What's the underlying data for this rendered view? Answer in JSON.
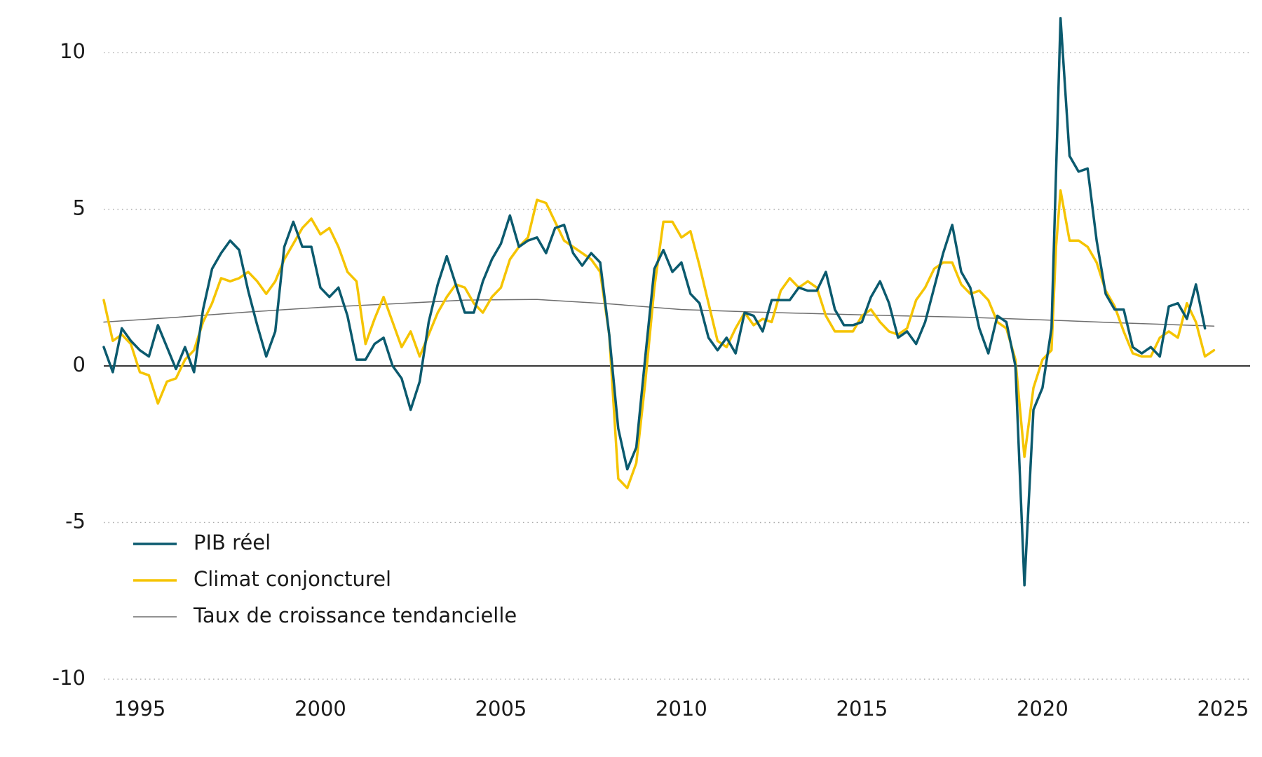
{
  "chart_data": {
    "type": "line",
    "xlim": [
      1994,
      2025.75
    ],
    "ylim": [
      -10,
      11.5
    ],
    "xticks": [
      1995,
      2000,
      2005,
      2010,
      2015,
      2020,
      2025
    ],
    "yticks": [
      -10,
      -5,
      0,
      5,
      10
    ],
    "grid": true,
    "legend": "lower left",
    "series": [
      {
        "name": "PIB réel",
        "color": "#0b5a6e",
        "width": 3.5,
        "x": [
          1994,
          1994.25,
          1994.5,
          1994.75,
          1995,
          1995.25,
          1995.5,
          1995.75,
          1996,
          1996.25,
          1996.5,
          1996.75,
          1997,
          1997.25,
          1997.5,
          1997.75,
          1998,
          1998.25,
          1998.5,
          1998.75,
          1999,
          1999.25,
          1999.5,
          1999.75,
          2000,
          2000.25,
          2000.5,
          2000.75,
          2001,
          2001.25,
          2001.5,
          2001.75,
          2002,
          2002.25,
          2002.5,
          2002.75,
          2003,
          2003.25,
          2003.5,
          2003.75,
          2004,
          2004.25,
          2004.5,
          2004.75,
          2005,
          2005.25,
          2005.5,
          2005.75,
          2006,
          2006.25,
          2006.5,
          2006.75,
          2007,
          2007.25,
          2007.5,
          2007.75,
          2008,
          2008.25,
          2008.5,
          2008.75,
          2009,
          2009.25,
          2009.5,
          2009.75,
          2010,
          2010.25,
          2010.5,
          2010.75,
          2011,
          2011.25,
          2011.5,
          2011.75,
          2012,
          2012.25,
          2012.5,
          2012.75,
          2013,
          2013.25,
          2013.5,
          2013.75,
          2014,
          2014.25,
          2014.5,
          2014.75,
          2015,
          2015.25,
          2015.5,
          2015.75,
          2016,
          2016.25,
          2016.5,
          2016.75,
          2017,
          2017.25,
          2017.5,
          2017.75,
          2018,
          2018.25,
          2018.5,
          2018.75,
          2019,
          2019.25,
          2019.5,
          2019.75,
          2020,
          2020.25,
          2020.5,
          2020.75,
          2021,
          2021.25,
          2021.5,
          2021.75,
          2022,
          2022.25,
          2022.5,
          2022.75,
          2023,
          2023.25,
          2023.5,
          2023.75,
          2024,
          2024.25,
          2024.5
        ],
        "values": [
          0.6,
          -0.2,
          1.2,
          0.8,
          0.5,
          0.3,
          1.3,
          0.6,
          -0.1,
          0.6,
          -0.2,
          1.8,
          3.1,
          3.6,
          4.0,
          3.7,
          2.4,
          1.3,
          0.3,
          1.1,
          3.8,
          4.6,
          3.8,
          3.8,
          2.5,
          2.2,
          2.5,
          1.6,
          0.2,
          0.2,
          0.7,
          0.9,
          0.0,
          -0.4,
          -1.4,
          -0.5,
          1.4,
          2.6,
          3.5,
          2.6,
          1.7,
          1.7,
          2.7,
          3.4,
          3.9,
          4.8,
          3.8,
          4.0,
          4.1,
          3.6,
          4.4,
          4.5,
          3.6,
          3.2,
          3.6,
          3.3,
          1.0,
          -2.0,
          -3.3,
          -2.6,
          0.3,
          3.1,
          3.7,
          3.0,
          3.3,
          2.3,
          2.0,
          0.9,
          0.5,
          0.9,
          0.4,
          1.7,
          1.6,
          1.1,
          2.1,
          2.1,
          2.1,
          2.5,
          2.4,
          2.4,
          3.0,
          1.8,
          1.3,
          1.3,
          1.4,
          2.2,
          2.7,
          2.0,
          0.9,
          1.1,
          0.7,
          1.4,
          2.5,
          3.6,
          4.5,
          3.0,
          2.5,
          1.2,
          0.4,
          1.6,
          1.4,
          0.0,
          -7.0,
          -1.4,
          -0.7,
          1.2,
          11.1,
          6.7,
          6.2,
          6.3,
          4.0,
          2.3,
          1.8,
          1.8,
          0.6,
          0.4,
          0.6,
          0.3,
          1.9,
          2.0,
          1.5,
          2.6,
          1.2
        ]
      },
      {
        "name": "Climat conjoncturel",
        "color": "#f5c400",
        "width": 3.5,
        "x": [
          1994,
          1994.25,
          1994.5,
          1994.75,
          1995,
          1995.25,
          1995.5,
          1995.75,
          1996,
          1996.25,
          1996.5,
          1996.75,
          1997,
          1997.25,
          1997.5,
          1997.75,
          1998,
          1998.25,
          1998.5,
          1998.75,
          1999,
          1999.25,
          1999.5,
          1999.75,
          2000,
          2000.25,
          2000.5,
          2000.75,
          2001,
          2001.25,
          2001.5,
          2001.75,
          2002,
          2002.25,
          2002.5,
          2002.75,
          2003,
          2003.25,
          2003.5,
          2003.75,
          2004,
          2004.25,
          2004.5,
          2004.75,
          2005,
          2005.25,
          2005.5,
          2005.75,
          2006,
          2006.25,
          2006.5,
          2006.75,
          2007,
          2007.25,
          2007.5,
          2007.75,
          2008,
          2008.25,
          2008.5,
          2008.75,
          2009,
          2009.25,
          2009.5,
          2009.75,
          2010,
          2010.25,
          2010.5,
          2010.75,
          2011,
          2011.25,
          2011.5,
          2011.75,
          2012,
          2012.25,
          2012.5,
          2012.75,
          2013,
          2013.25,
          2013.5,
          2013.75,
          2014,
          2014.25,
          2014.5,
          2014.75,
          2015,
          2015.25,
          2015.5,
          2015.75,
          2016,
          2016.25,
          2016.5,
          2016.75,
          2017,
          2017.25,
          2017.5,
          2017.75,
          2018,
          2018.25,
          2018.5,
          2018.75,
          2019,
          2019.25,
          2019.5,
          2019.75,
          2020,
          2020.25,
          2020.375,
          2020.5,
          2020.75,
          2021,
          2021.25,
          2021.5,
          2021.75,
          2022,
          2022.25,
          2022.5,
          2022.75,
          2023,
          2023.25,
          2023.5,
          2023.75,
          2024,
          2024.25,
          2024.5,
          2024.75
        ],
        "values": [
          2.1,
          0.8,
          1.0,
          0.7,
          -0.2,
          -0.3,
          -1.2,
          -0.5,
          -0.4,
          0.2,
          0.5,
          1.4,
          2.0,
          2.8,
          2.7,
          2.8,
          3.0,
          2.7,
          2.3,
          2.7,
          3.4,
          3.9,
          4.4,
          4.7,
          4.2,
          4.4,
          3.8,
          3.0,
          2.7,
          0.7,
          1.5,
          2.2,
          1.4,
          0.6,
          1.1,
          0.3,
          1.0,
          1.7,
          2.2,
          2.6,
          2.5,
          2.0,
          1.7,
          2.2,
          2.5,
          3.4,
          3.8,
          4.1,
          5.3,
          5.2,
          4.6,
          4.0,
          3.8,
          3.6,
          3.4,
          3.0,
          1.0,
          -3.6,
          -3.9,
          -3.1,
          -0.5,
          2.5,
          4.6,
          4.6,
          4.1,
          4.3,
          3.2,
          2.0,
          0.8,
          0.6,
          1.2,
          1.7,
          1.3,
          1.5,
          1.4,
          2.4,
          2.8,
          2.5,
          2.7,
          2.5,
          1.6,
          1.1,
          1.1,
          1.1,
          1.6,
          1.8,
          1.4,
          1.1,
          1.0,
          1.2,
          2.1,
          2.5,
          3.1,
          3.3,
          3.3,
          2.6,
          2.3,
          2.4,
          2.1,
          1.4,
          1.2,
          0.2,
          -2.9,
          -0.7,
          0.2,
          0.5,
          3.8,
          5.6,
          4.0,
          4.0,
          3.8,
          3.3,
          2.4,
          1.9,
          1.1,
          0.4,
          0.3,
          0.3,
          0.9,
          1.1,
          0.9,
          2.0,
          1.4,
          0.3,
          0.5
        ]
      },
      {
        "name": "Taux de croissance tendancielle",
        "color": "#6e6e6e",
        "width": 1.5,
        "x": [
          1994,
          1996,
          1998,
          2000,
          2002,
          2004,
          2006,
          2008,
          2010,
          2012,
          2014,
          2016,
          2018,
          2020,
          2022,
          2024.75
        ],
        "values": [
          1.4,
          1.55,
          1.72,
          1.87,
          1.98,
          2.1,
          2.12,
          1.98,
          1.8,
          1.72,
          1.66,
          1.6,
          1.55,
          1.47,
          1.38,
          1.27
        ]
      }
    ]
  }
}
